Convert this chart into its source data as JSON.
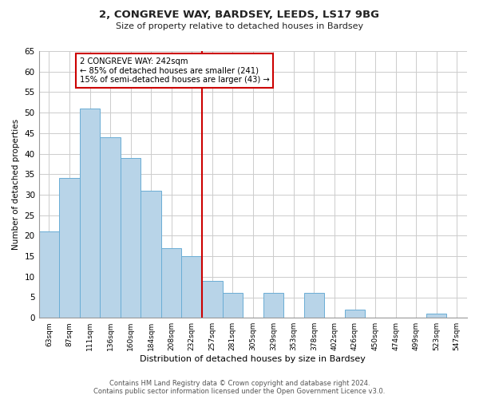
{
  "title": "2, CONGREVE WAY, BARDSEY, LEEDS, LS17 9BG",
  "subtitle": "Size of property relative to detached houses in Bardsey",
  "xlabel": "Distribution of detached houses by size in Bardsey",
  "ylabel": "Number of detached properties",
  "bin_labels": [
    "63sqm",
    "87sqm",
    "111sqm",
    "136sqm",
    "160sqm",
    "184sqm",
    "208sqm",
    "232sqm",
    "257sqm",
    "281sqm",
    "305sqm",
    "329sqm",
    "353sqm",
    "378sqm",
    "402sqm",
    "426sqm",
    "450sqm",
    "474sqm",
    "499sqm",
    "523sqm",
    "547sqm"
  ],
  "bar_values": [
    21,
    34,
    51,
    44,
    39,
    31,
    17,
    15,
    9,
    6,
    0,
    6,
    0,
    6,
    0,
    2,
    0,
    0,
    0,
    1,
    0
  ],
  "bar_color": "#b8d4e8",
  "bar_edge_color": "#6aadd5",
  "vline_x_index": 8.0,
  "vline_color": "#cc0000",
  "annotation_text": "2 CONGREVE WAY: 242sqm\n← 85% of detached houses are smaller (241)\n15% of semi-detached houses are larger (43) →",
  "annotation_box_color": "#ffffff",
  "annotation_box_edge": "#cc0000",
  "ylim": [
    0,
    65
  ],
  "yticks": [
    0,
    5,
    10,
    15,
    20,
    25,
    30,
    35,
    40,
    45,
    50,
    55,
    60,
    65
  ],
  "footer_line1": "Contains HM Land Registry data © Crown copyright and database right 2024.",
  "footer_line2": "Contains public sector information licensed under the Open Government Licence v3.0.",
  "background_color": "#ffffff",
  "grid_color": "#cccccc"
}
